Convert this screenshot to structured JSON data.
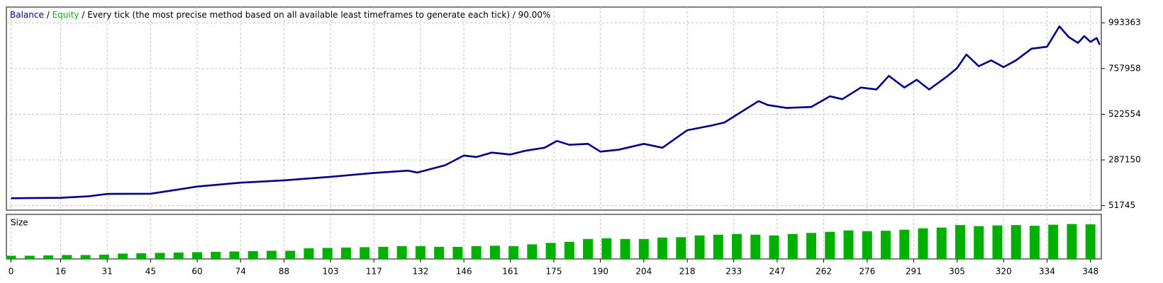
{
  "chart_data": [
    {
      "type": "line",
      "series": [
        {
          "name": "Balance",
          "color": "#00008b",
          "x": [
            0,
            16,
            25,
            31,
            45,
            52,
            60,
            74,
            88,
            103,
            117,
            128,
            131,
            140,
            146,
            150,
            155,
            161,
            166,
            172,
            176,
            180,
            186,
            190,
            196,
            204,
            210,
            214,
            218,
            226,
            230,
            236,
            241,
            244,
            250,
            258,
            264,
            268,
            274,
            279,
            283,
            288,
            292,
            296,
            302,
            305,
            308,
            312,
            316,
            320,
            324,
            329,
            334,
            338,
            341,
            344,
            346,
            348,
            350,
            351
          ],
          "values": [
            90000,
            92000,
            100000,
            112000,
            113000,
            130000,
            150000,
            170000,
            182000,
            200000,
            220000,
            232000,
            222000,
            260000,
            310000,
            302000,
            325000,
            315000,
            335000,
            350000,
            385000,
            365000,
            370000,
            330000,
            340000,
            370000,
            350000,
            395000,
            440000,
            465000,
            480000,
            540000,
            590000,
            570000,
            555000,
            560000,
            615000,
            600000,
            660000,
            650000,
            720000,
            660000,
            700000,
            650000,
            720000,
            760000,
            830000,
            770000,
            800000,
            765000,
            800000,
            860000,
            870000,
            975000,
            920000,
            890000,
            925000,
            895000,
            915000,
            880000
          ]
        },
        {
          "name": "Equity",
          "color": "#00b400",
          "x": [
            0,
            16,
            25,
            31,
            45,
            52,
            60,
            74,
            88,
            103,
            117,
            128,
            131,
            140,
            146,
            150,
            155,
            161,
            166,
            172,
            176,
            180,
            186,
            190,
            196,
            204,
            210,
            214,
            218,
            226,
            230,
            236,
            241,
            244,
            250,
            258,
            264,
            268,
            274,
            279,
            283,
            288,
            292,
            296,
            302,
            305,
            308,
            312,
            316,
            320,
            324,
            329,
            334,
            338,
            341,
            344,
            346,
            348,
            350,
            351
          ],
          "values": [
            90000,
            92000,
            100000,
            112000,
            113000,
            130000,
            150000,
            170000,
            182000,
            200000,
            220000,
            232000,
            222000,
            260000,
            310000,
            302000,
            325000,
            315000,
            335000,
            350000,
            385000,
            365000,
            370000,
            330000,
            340000,
            370000,
            350000,
            395000,
            440000,
            465000,
            480000,
            540000,
            590000,
            570000,
            555000,
            560000,
            615000,
            600000,
            660000,
            650000,
            720000,
            660000,
            700000,
            650000,
            720000,
            760000,
            830000,
            770000,
            800000,
            765000,
            800000,
            860000,
            870000,
            975000,
            920000,
            890000,
            925000,
            895000,
            915000,
            880000
          ]
        }
      ],
      "separator": "/",
      "subtitle": "/ Every tick (the most precise method based on all available least timeframes to generate each tick) / 90.00%",
      "xlim": [
        -1.5,
        351.5
      ],
      "ylim": [
        28600,
        1074400
      ],
      "yticks": [
        51745,
        287150,
        522554,
        757958,
        993363
      ],
      "xticks": [
        0,
        16,
        31,
        45,
        60,
        74,
        88,
        103,
        117,
        132,
        146,
        161,
        175,
        190,
        204,
        218,
        233,
        247,
        262,
        276,
        291,
        305,
        320,
        334,
        348
      ],
      "grid": true
    },
    {
      "type": "bar",
      "title": "Size",
      "color": "#00b000",
      "x": [
        0,
        6,
        12,
        18,
        24,
        30,
        36,
        42,
        48,
        54,
        60,
        66,
        72,
        78,
        84,
        90,
        96,
        102,
        108,
        114,
        120,
        126,
        132,
        138,
        144,
        150,
        156,
        162,
        168,
        174,
        180,
        186,
        192,
        198,
        204,
        210,
        216,
        222,
        228,
        234,
        240,
        246,
        252,
        258,
        264,
        270,
        276,
        282,
        288,
        294,
        300,
        306,
        312,
        318,
        324,
        330,
        336,
        342,
        348
      ],
      "values": [
        0.9,
        0.9,
        1.0,
        1.1,
        1.1,
        1.2,
        1.5,
        1.6,
        1.7,
        1.8,
        1.9,
        2.0,
        2.1,
        2.2,
        2.3,
        2.3,
        3.0,
        3.1,
        3.2,
        3.3,
        3.4,
        3.6,
        3.6,
        3.4,
        3.4,
        3.6,
        3.7,
        3.6,
        4.1,
        4.5,
        4.8,
        5.6,
        5.8,
        5.6,
        5.6,
        6.0,
        6.1,
        6.6,
        6.8,
        7.0,
        6.8,
        6.6,
        7.0,
        7.3,
        7.6,
        8.0,
        7.8,
        7.9,
        8.2,
        8.6,
        8.8,
        9.5,
        9.2,
        9.4,
        9.5,
        9.3,
        9.6,
        9.8,
        9.7
      ],
      "xlim": [
        -1.5,
        351.5
      ],
      "ylim": [
        0,
        12.5
      ],
      "grid": true
    }
  ]
}
